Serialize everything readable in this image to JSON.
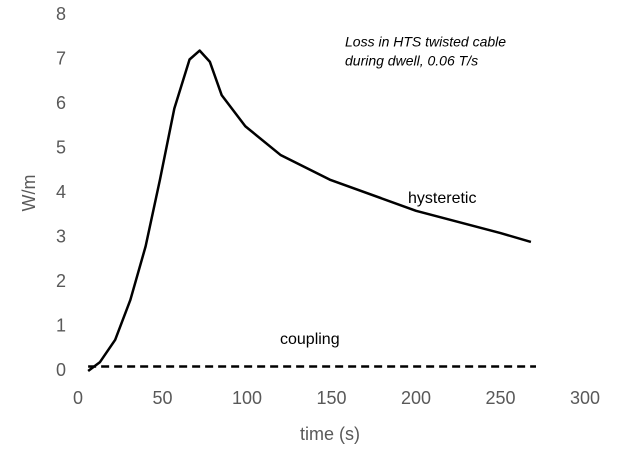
{
  "chart_data": {
    "type": "line",
    "annotation": [
      "Loss in HTS twisted cable",
      "during dwell, 0.06 T/s"
    ],
    "xlabel": "time (s)",
    "ylabel": "W/m",
    "xlim": [
      0,
      300
    ],
    "xticks": [
      0,
      50,
      100,
      150,
      200,
      250,
      300
    ],
    "ylim": [
      0,
      8
    ],
    "yticks": [
      0,
      1,
      2,
      3,
      4,
      5,
      6,
      7,
      8
    ],
    "series": [
      {
        "name": "hysteretic",
        "color": "#000000",
        "dashed": false,
        "x": [
          6,
          13,
          22,
          31,
          40,
          48.5,
          57,
          66,
          72,
          78,
          85,
          99,
          120,
          149,
          200,
          250,
          268
        ],
        "values": [
          0,
          0.2,
          0.7,
          1.6,
          2.8,
          4.3,
          5.9,
          7.0,
          7.2,
          6.95,
          6.2,
          5.5,
          4.85,
          4.3,
          3.6,
          3.1,
          2.9
        ]
      },
      {
        "name": "coupling",
        "color": "#000000",
        "dashed": true,
        "x": [
          6,
          271
        ],
        "values": [
          0.1,
          0.1
        ]
      }
    ]
  }
}
